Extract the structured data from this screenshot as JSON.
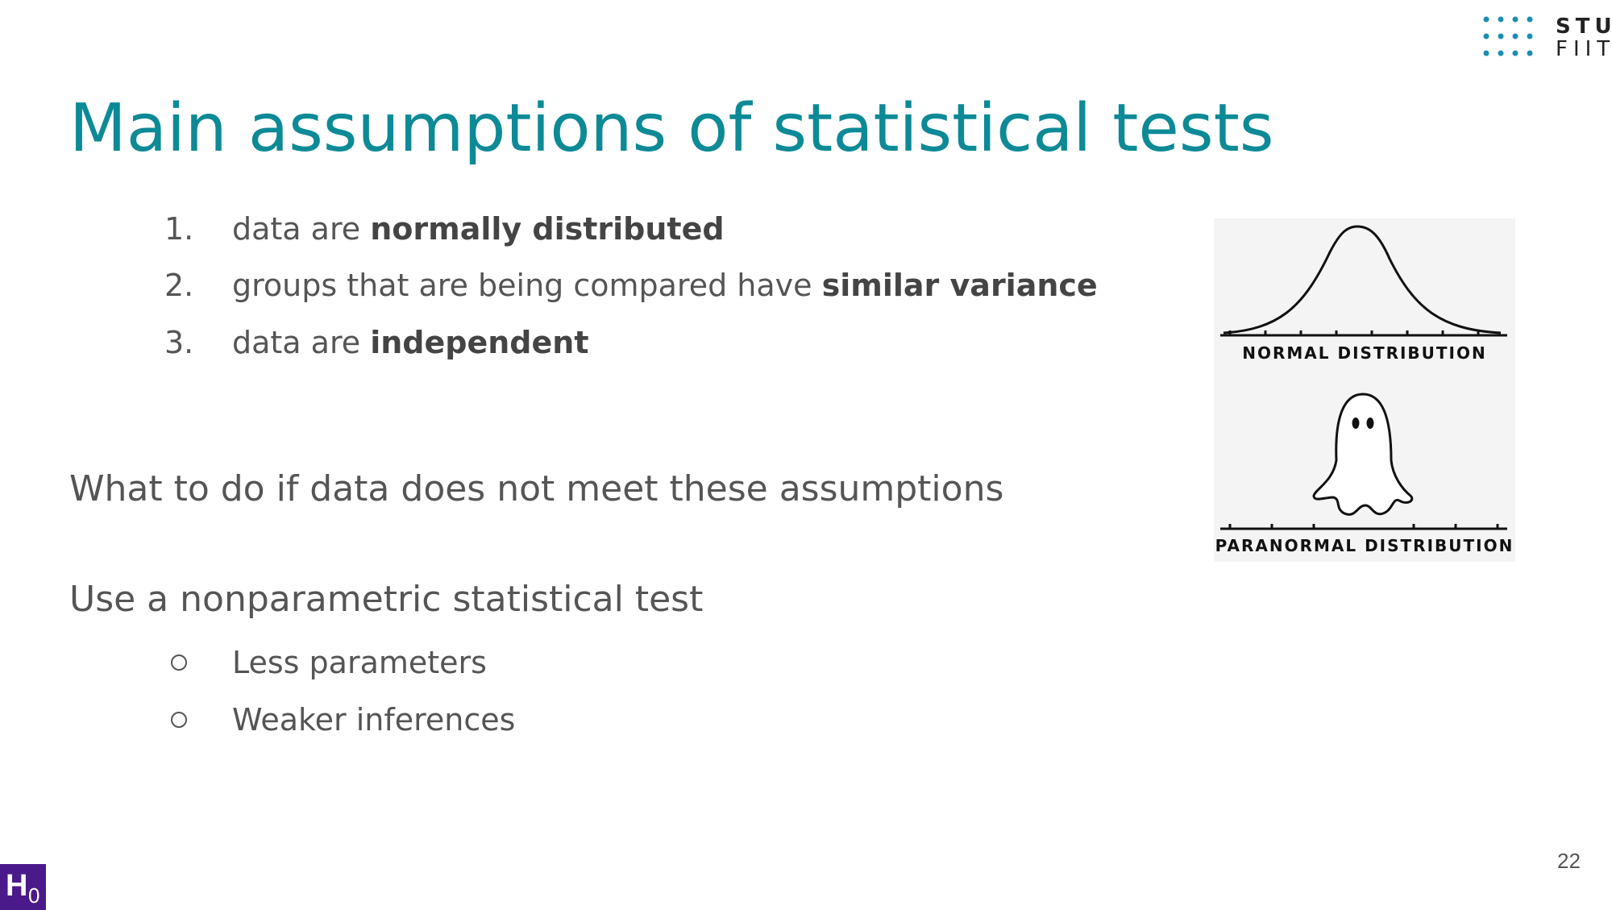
{
  "logo": {
    "line1": "STU",
    "line2": "FIIT"
  },
  "title": "Main assumptions of statistical tests",
  "assumptions": [
    {
      "marker": "1.",
      "text": "data are ",
      "bold": "normally distributed"
    },
    {
      "marker": "2.",
      "text": "groups that are being compared have ",
      "bold": "similar variance"
    },
    {
      "marker": "3.",
      "text": "data are ",
      "bold": "independent"
    }
  ],
  "question": "What to do if data does not meet these assumptions",
  "answer": "Use a nonparametric statistical test",
  "sub_points": [
    "Less parameters",
    "Weaker inferences"
  ],
  "figure": {
    "normal_label": "NORMAL DISTRIBUTION",
    "paranormal_label": "PARANORMAL DISTRIBUTION"
  },
  "page_number": "22",
  "badge": {
    "main": "H",
    "sub": "0"
  }
}
